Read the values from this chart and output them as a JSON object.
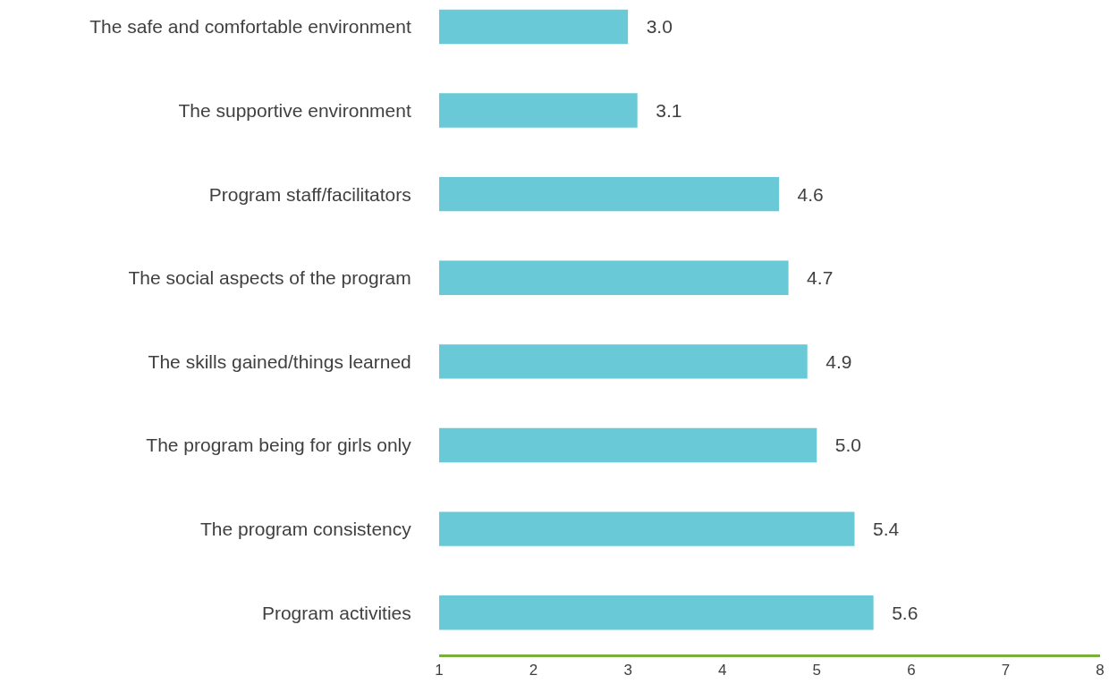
{
  "chart_data": {
    "type": "bar",
    "orientation": "horizontal",
    "categories": [
      "The safe and comfortable environment",
      "The supportive environment",
      "Program staff/facilitators",
      "The social aspects of the program",
      "The skills gained/things learned",
      "The program being for girls only",
      "The program consistency",
      "Program activities"
    ],
    "values": [
      3.0,
      3.1,
      4.6,
      4.7,
      4.9,
      5.0,
      5.4,
      5.6
    ],
    "value_labels": [
      "3.0",
      "3.1",
      "4.6",
      "4.7",
      "4.9",
      "5.0",
      "5.4",
      "5.6"
    ],
    "color": "#69c9d6",
    "xlim": [
      1,
      8
    ],
    "xticks": [
      1,
      2,
      3,
      4,
      5,
      6,
      7,
      8
    ]
  }
}
